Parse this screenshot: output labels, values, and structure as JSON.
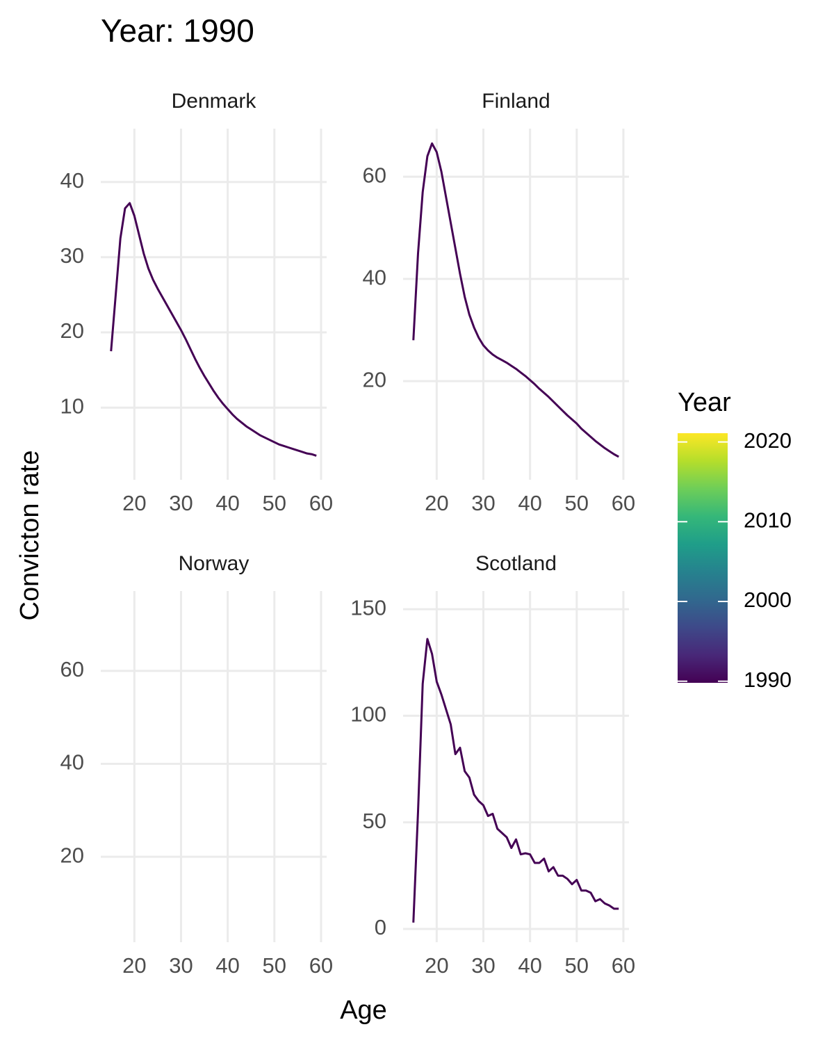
{
  "title": "Year: 1990",
  "x_label": "Age",
  "y_label": "Convicton rate",
  "legend": {
    "title": "Year",
    "lim": [
      1989.8,
      2021.1
    ],
    "ticks": [
      1990,
      2000,
      2010,
      2020
    ],
    "colors": [
      "#440154",
      "#482878",
      "#3e4989",
      "#31688e",
      "#26828e",
      "#1f9e89",
      "#35b779",
      "#6ece58",
      "#b5de2b",
      "#fde725"
    ]
  },
  "chart_data": [
    {
      "type": "line",
      "title": "Denmark",
      "color": "#440154",
      "grid": true,
      "x": [
        15,
        16,
        17,
        18,
        19,
        20,
        21,
        22,
        23,
        24,
        25,
        26,
        27,
        28,
        29,
        30,
        31,
        32,
        33,
        34,
        35,
        36,
        37,
        38,
        39,
        40,
        41,
        42,
        43,
        44,
        45,
        46,
        47,
        48,
        49,
        50,
        51,
        52,
        53,
        54,
        55,
        56,
        57,
        58,
        59
      ],
      "values": [
        17.5,
        25,
        32.5,
        36.5,
        37.2,
        35.5,
        33,
        30.5,
        28.5,
        27,
        25.8,
        24.7,
        23.6,
        22.5,
        21.4,
        20.3,
        19.1,
        17.8,
        16.5,
        15.3,
        14.2,
        13.2,
        12.2,
        11.3,
        10.5,
        9.8,
        9.1,
        8.5,
        8,
        7.5,
        7.1,
        6.7,
        6.3,
        6,
        5.7,
        5.4,
        5.1,
        4.9,
        4.7,
        4.5,
        4.3,
        4.1,
        3.9,
        3.8,
        3.6
      ],
      "xlim": [
        12.8,
        61.2
      ],
      "xticks": [
        20,
        30,
        40,
        50,
        60
      ],
      "ylim": [
        0.4,
        47.1
      ],
      "yticks": [
        10,
        20,
        30,
        40
      ]
    },
    {
      "type": "line",
      "title": "Finland",
      "color": "#440154",
      "grid": true,
      "x": [
        15,
        16,
        17,
        18,
        19,
        20,
        21,
        22,
        23,
        24,
        25,
        26,
        27,
        28,
        29,
        30,
        31,
        32,
        33,
        34,
        35,
        36,
        37,
        38,
        39,
        40,
        41,
        42,
        43,
        44,
        45,
        46,
        47,
        48,
        49,
        50,
        51,
        52,
        53,
        54,
        55,
        56,
        57,
        58,
        59
      ],
      "values": [
        28,
        45,
        57,
        64,
        66.5,
        64.8,
        61,
        56,
        51,
        46,
        41,
        36.5,
        33,
        30.5,
        28.5,
        27,
        26,
        25.2,
        24.6,
        24.1,
        23.6,
        23,
        22.4,
        21.7,
        21,
        20.2,
        19.4,
        18.5,
        17.7,
        16.9,
        16,
        15.1,
        14.2,
        13.3,
        12.5,
        11.7,
        10.7,
        9.9,
        9.1,
        8.3,
        7.6,
        6.9,
        6.3,
        5.7,
        5.2
      ],
      "xlim": [
        12.8,
        61.2
      ],
      "xticks": [
        20,
        30,
        40,
        50,
        60
      ],
      "ylim": [
        0.7,
        69.4
      ],
      "yticks": [
        20,
        40,
        60
      ]
    },
    {
      "type": "line",
      "title": "Norway",
      "color": "#440154",
      "grid": true,
      "x": [],
      "values": [],
      "xlim": [
        12.8,
        61.2
      ],
      "xticks": [
        20,
        30,
        40,
        50,
        60
      ],
      "ylim": [
        1.6,
        77.2
      ],
      "yticks": [
        20,
        40,
        60
      ]
    },
    {
      "type": "line",
      "title": "Scotland",
      "color": "#440154",
      "grid": true,
      "x": [
        15,
        16,
        17,
        18,
        19,
        20,
        21,
        22,
        23,
        24,
        25,
        26,
        27,
        28,
        29,
        30,
        31,
        32,
        33,
        34,
        35,
        36,
        37,
        38,
        39,
        40,
        41,
        42,
        43,
        44,
        45,
        46,
        47,
        48,
        49,
        50,
        51,
        52,
        53,
        54,
        55,
        56,
        57,
        58,
        59
      ],
      "values": [
        3,
        55,
        115,
        136,
        129,
        116,
        110,
        103,
        96,
        82,
        85,
        74,
        71,
        63,
        60,
        58,
        53,
        54,
        47,
        45,
        43,
        38,
        42,
        35,
        35.5,
        35,
        31,
        31,
        33,
        27,
        29,
        25,
        25,
        23.5,
        21,
        23,
        18,
        18,
        17,
        13,
        14,
        12,
        11,
        9.5,
        9.5
      ],
      "xlim": [
        12.8,
        61.2
      ],
      "xticks": [
        20,
        30,
        40,
        50,
        60
      ],
      "ylim": [
        -6.2,
        158.5
      ],
      "yticks": [
        0,
        50,
        100,
        150
      ]
    }
  ]
}
